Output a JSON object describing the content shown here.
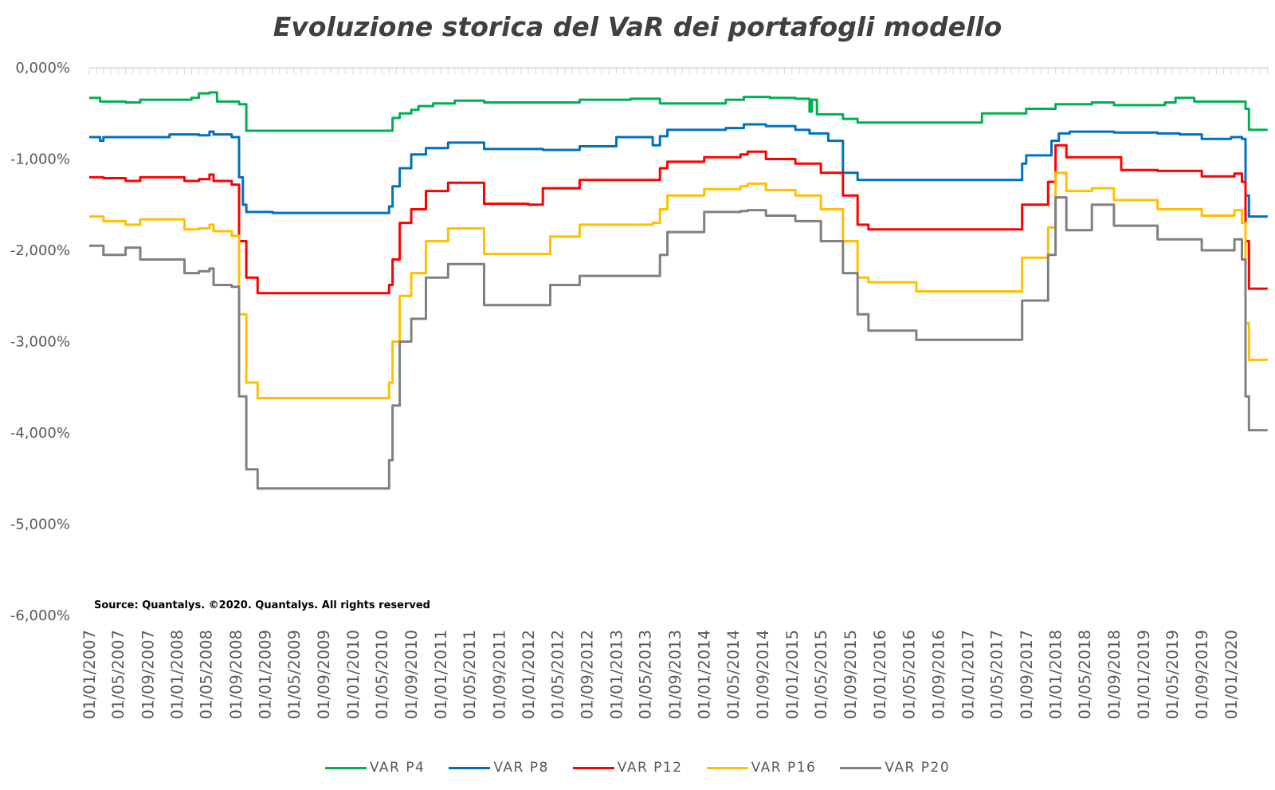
{
  "chart_data": {
    "type": "line",
    "title": "Evoluzione storica del VaR dei portafogli modello",
    "source": "Source: Quantalys. ©2020. Quantalys. All rights reserved",
    "ylim": [
      -6.0,
      0.0
    ],
    "y_ticks": [
      0,
      -1,
      -2,
      -3,
      -4,
      -5,
      -6
    ],
    "y_tick_labels": [
      "0,000%",
      "-1,000%",
      "-2,000%",
      "-3,000%",
      "-4,000%",
      "-5,000%",
      "-6,000%"
    ],
    "x_tick_labels": [
      "01/01/2007",
      "01/05/2007",
      "01/09/2007",
      "01/01/2008",
      "01/05/2008",
      "01/09/2008",
      "01/01/2009",
      "01/05/2009",
      "01/09/2009",
      "01/01/2010",
      "01/05/2010",
      "01/09/2010",
      "01/01/2011",
      "01/05/2011",
      "01/09/2011",
      "01/01/2012",
      "01/05/2012",
      "01/09/2012",
      "01/01/2013",
      "01/05/2013",
      "01/09/2013",
      "01/01/2014",
      "01/05/2014",
      "01/09/2014",
      "01/01/2015",
      "01/05/2015",
      "01/09/2015",
      "01/01/2016",
      "01/05/2016",
      "01/09/2016",
      "01/01/2017",
      "01/05/2017",
      "01/09/2017",
      "01/01/2018",
      "01/05/2018",
      "01/09/2018",
      "01/01/2019",
      "01/05/2019",
      "01/09/2019",
      "01/01/2020"
    ],
    "grid": "vertical",
    "legend_position": "bottom",
    "series": [
      {
        "name": "VAR P4",
        "color": "#00B050",
        "points": [
          [
            "2007-01-01",
            -0.33
          ],
          [
            "2007-02-15",
            -0.37
          ],
          [
            "2007-06-01",
            -0.38
          ],
          [
            "2007-08-01",
            -0.35
          ],
          [
            "2008-03-01",
            -0.33
          ],
          [
            "2008-04-01",
            -0.28
          ],
          [
            "2008-05-15",
            -0.27
          ],
          [
            "2008-06-15",
            -0.37
          ],
          [
            "2008-09-15",
            -0.4
          ],
          [
            "2008-10-15",
            -0.69
          ],
          [
            "2010-02-01",
            -0.69
          ],
          [
            "2010-06-01",
            -0.69
          ],
          [
            "2010-06-15",
            -0.55
          ],
          [
            "2010-07-15",
            -0.5
          ],
          [
            "2010-09-01",
            -0.46
          ],
          [
            "2010-10-01",
            -0.42
          ],
          [
            "2010-12-01",
            -0.39
          ],
          [
            "2011-03-01",
            -0.36
          ],
          [
            "2011-07-01",
            -0.38
          ],
          [
            "2012-03-01",
            -0.38
          ],
          [
            "2012-08-01",
            -0.35
          ],
          [
            "2013-03-01",
            -0.34
          ],
          [
            "2013-07-01",
            -0.39
          ],
          [
            "2014-04-01",
            -0.35
          ],
          [
            "2014-06-15",
            -0.32
          ],
          [
            "2014-10-01",
            -0.33
          ],
          [
            "2015-01-15",
            -0.34
          ],
          [
            "2015-03-15",
            -0.48
          ],
          [
            "2015-03-25",
            -0.35
          ],
          [
            "2015-04-15",
            -0.51
          ],
          [
            "2015-08-01",
            -0.56
          ],
          [
            "2015-10-01",
            -0.6
          ],
          [
            "2017-01-01",
            -0.6
          ],
          [
            "2017-03-01",
            -0.5
          ],
          [
            "2017-09-01",
            -0.45
          ],
          [
            "2018-01-01",
            -0.4
          ],
          [
            "2018-06-01",
            -0.38
          ],
          [
            "2018-09-01",
            -0.41
          ],
          [
            "2019-04-01",
            -0.38
          ],
          [
            "2019-05-15",
            -0.33
          ],
          [
            "2019-08-01",
            -0.37
          ],
          [
            "2020-02-15",
            -0.37
          ],
          [
            "2020-03-01",
            -0.45
          ],
          [
            "2020-03-15",
            -0.68
          ],
          [
            "2020-06-01",
            -0.68
          ]
        ]
      },
      {
        "name": "VAR P8",
        "color": "#0070C0",
        "points": [
          [
            "2007-01-01",
            -0.76
          ],
          [
            "2007-02-15",
            -0.8
          ],
          [
            "2007-03-01",
            -0.76
          ],
          [
            "2007-12-01",
            -0.73
          ],
          [
            "2008-04-01",
            -0.74
          ],
          [
            "2008-05-15",
            -0.7
          ],
          [
            "2008-06-01",
            -0.73
          ],
          [
            "2008-08-15",
            -0.76
          ],
          [
            "2008-09-15",
            -1.2
          ],
          [
            "2008-10-01",
            -1.5
          ],
          [
            "2008-10-15",
            -1.58
          ],
          [
            "2009-02-01",
            -1.59
          ],
          [
            "2010-05-15",
            -1.59
          ],
          [
            "2010-06-01",
            -1.52
          ],
          [
            "2010-06-15",
            -1.3
          ],
          [
            "2010-07-15",
            -1.1
          ],
          [
            "2010-09-01",
            -0.95
          ],
          [
            "2010-11-01",
            -0.88
          ],
          [
            "2011-02-01",
            -0.82
          ],
          [
            "2011-07-01",
            -0.89
          ],
          [
            "2012-03-01",
            -0.9
          ],
          [
            "2012-08-01",
            -0.86
          ],
          [
            "2013-01-01",
            -0.76
          ],
          [
            "2013-06-01",
            -0.85
          ],
          [
            "2013-07-01",
            -0.75
          ],
          [
            "2013-08-01",
            -0.68
          ],
          [
            "2014-04-01",
            -0.66
          ],
          [
            "2014-06-15",
            -0.62
          ],
          [
            "2014-09-15",
            -0.64
          ],
          [
            "2015-01-15",
            -0.68
          ],
          [
            "2015-03-15",
            -0.72
          ],
          [
            "2015-06-01",
            -0.8
          ],
          [
            "2015-08-01",
            -1.15
          ],
          [
            "2015-10-01",
            -1.23
          ],
          [
            "2017-07-01",
            -1.23
          ],
          [
            "2017-08-15",
            -1.05
          ],
          [
            "2017-09-01",
            -0.96
          ],
          [
            "2017-12-15",
            -0.8
          ],
          [
            "2018-01-15",
            -0.72
          ],
          [
            "2018-03-01",
            -0.7
          ],
          [
            "2018-09-01",
            -0.71
          ],
          [
            "2019-03-01",
            -0.72
          ],
          [
            "2019-06-01",
            -0.73
          ],
          [
            "2019-09-01",
            -0.78
          ],
          [
            "2020-01-01",
            -0.76
          ],
          [
            "2020-02-15",
            -0.78
          ],
          [
            "2020-03-01",
            -1.4
          ],
          [
            "2020-03-15",
            -1.63
          ],
          [
            "2020-06-01",
            -1.63
          ]
        ]
      },
      {
        "name": "VAR P12",
        "color": "#FF0000",
        "points": [
          [
            "2007-01-01",
            -1.2
          ],
          [
            "2007-03-01",
            -1.21
          ],
          [
            "2007-06-01",
            -1.24
          ],
          [
            "2007-08-01",
            -1.2
          ],
          [
            "2008-02-01",
            -1.24
          ],
          [
            "2008-04-01",
            -1.22
          ],
          [
            "2008-05-15",
            -1.17
          ],
          [
            "2008-06-01",
            -1.24
          ],
          [
            "2008-08-15",
            -1.28
          ],
          [
            "2008-09-15",
            -1.9
          ],
          [
            "2008-10-15",
            -2.3
          ],
          [
            "2008-12-01",
            -2.47
          ],
          [
            "2010-05-15",
            -2.47
          ],
          [
            "2010-06-01",
            -2.38
          ],
          [
            "2010-06-15",
            -2.1
          ],
          [
            "2010-07-15",
            -1.7
          ],
          [
            "2010-09-01",
            -1.55
          ],
          [
            "2010-11-01",
            -1.35
          ],
          [
            "2011-02-01",
            -1.26
          ],
          [
            "2011-07-01",
            -1.49
          ],
          [
            "2012-01-01",
            -1.5
          ],
          [
            "2012-03-01",
            -1.32
          ],
          [
            "2012-08-01",
            -1.23
          ],
          [
            "2013-06-01",
            -1.23
          ],
          [
            "2013-07-01",
            -1.1
          ],
          [
            "2013-08-01",
            -1.03
          ],
          [
            "2014-01-01",
            -0.98
          ],
          [
            "2014-06-01",
            -0.95
          ],
          [
            "2014-07-01",
            -0.92
          ],
          [
            "2014-09-15",
            -1.0
          ],
          [
            "2015-01-15",
            -1.05
          ],
          [
            "2015-05-01",
            -1.15
          ],
          [
            "2015-08-01",
            -1.4
          ],
          [
            "2015-10-01",
            -1.72
          ],
          [
            "2015-11-15",
            -1.77
          ],
          [
            "2017-07-01",
            -1.77
          ],
          [
            "2017-08-15",
            -1.5
          ],
          [
            "2017-12-01",
            -1.25
          ],
          [
            "2018-01-01",
            -0.85
          ],
          [
            "2018-02-15",
            -0.98
          ],
          [
            "2018-09-01",
            -0.98
          ],
          [
            "2018-10-01",
            -1.12
          ],
          [
            "2019-03-01",
            -1.13
          ],
          [
            "2019-09-01",
            -1.19
          ],
          [
            "2020-01-15",
            -1.16
          ],
          [
            "2020-02-15",
            -1.25
          ],
          [
            "2020-03-01",
            -1.9
          ],
          [
            "2020-03-15",
            -2.42
          ],
          [
            "2020-06-01",
            -2.42
          ]
        ]
      },
      {
        "name": "VAR P16",
        "color": "#FFC000",
        "points": [
          [
            "2007-01-01",
            -1.63
          ],
          [
            "2007-03-01",
            -1.68
          ],
          [
            "2007-06-01",
            -1.72
          ],
          [
            "2007-08-01",
            -1.66
          ],
          [
            "2008-02-01",
            -1.77
          ],
          [
            "2008-04-01",
            -1.76
          ],
          [
            "2008-05-15",
            -1.72
          ],
          [
            "2008-06-01",
            -1.79
          ],
          [
            "2008-08-15",
            -1.84
          ],
          [
            "2008-09-15",
            -2.7
          ],
          [
            "2008-10-15",
            -3.45
          ],
          [
            "2008-12-01",
            -3.62
          ],
          [
            "2010-05-15",
            -3.62
          ],
          [
            "2010-06-01",
            -3.45
          ],
          [
            "2010-06-15",
            -3.0
          ],
          [
            "2010-07-15",
            -2.5
          ],
          [
            "2010-09-01",
            -2.25
          ],
          [
            "2010-11-01",
            -1.9
          ],
          [
            "2011-02-01",
            -1.76
          ],
          [
            "2011-07-01",
            -2.04
          ],
          [
            "2012-03-01",
            -2.04
          ],
          [
            "2012-04-01",
            -1.85
          ],
          [
            "2012-08-01",
            -1.72
          ],
          [
            "2013-06-01",
            -1.7
          ],
          [
            "2013-07-01",
            -1.55
          ],
          [
            "2013-08-01",
            -1.4
          ],
          [
            "2014-01-01",
            -1.33
          ],
          [
            "2014-06-01",
            -1.3
          ],
          [
            "2014-07-01",
            -1.27
          ],
          [
            "2014-09-15",
            -1.34
          ],
          [
            "2015-01-15",
            -1.4
          ],
          [
            "2015-05-01",
            -1.55
          ],
          [
            "2015-08-01",
            -1.9
          ],
          [
            "2015-10-01",
            -2.3
          ],
          [
            "2015-11-15",
            -2.35
          ],
          [
            "2016-06-01",
            -2.45
          ],
          [
            "2017-07-01",
            -2.45
          ],
          [
            "2017-08-15",
            -2.08
          ],
          [
            "2017-12-01",
            -1.75
          ],
          [
            "2018-01-01",
            -1.15
          ],
          [
            "2018-02-15",
            -1.35
          ],
          [
            "2018-06-01",
            -1.32
          ],
          [
            "2018-09-01",
            -1.45
          ],
          [
            "2019-03-01",
            -1.55
          ],
          [
            "2019-09-01",
            -1.62
          ],
          [
            "2020-01-15",
            -1.56
          ],
          [
            "2020-02-15",
            -1.7
          ],
          [
            "2020-03-01",
            -2.8
          ],
          [
            "2020-03-15",
            -3.2
          ],
          [
            "2020-06-01",
            -3.2
          ]
        ]
      },
      {
        "name": "VAR P20",
        "color": "#808080",
        "points": [
          [
            "2007-01-01",
            -1.95
          ],
          [
            "2007-03-01",
            -2.05
          ],
          [
            "2007-06-01",
            -1.97
          ],
          [
            "2007-08-01",
            -2.1
          ],
          [
            "2008-02-01",
            -2.25
          ],
          [
            "2008-04-01",
            -2.23
          ],
          [
            "2008-05-15",
            -2.2
          ],
          [
            "2008-06-01",
            -2.38
          ],
          [
            "2008-08-15",
            -2.4
          ],
          [
            "2008-09-15",
            -3.6
          ],
          [
            "2008-10-15",
            -4.4
          ],
          [
            "2008-12-01",
            -4.61
          ],
          [
            "2010-05-15",
            -4.61
          ],
          [
            "2010-06-01",
            -4.3
          ],
          [
            "2010-06-15",
            -3.7
          ],
          [
            "2010-07-15",
            -3.0
          ],
          [
            "2010-09-01",
            -2.75
          ],
          [
            "2010-11-01",
            -2.3
          ],
          [
            "2011-02-01",
            -2.15
          ],
          [
            "2011-07-01",
            -2.6
          ],
          [
            "2012-03-01",
            -2.6
          ],
          [
            "2012-04-01",
            -2.38
          ],
          [
            "2012-08-01",
            -2.28
          ],
          [
            "2013-06-01",
            -2.28
          ],
          [
            "2013-07-01",
            -2.05
          ],
          [
            "2013-08-01",
            -1.8
          ],
          [
            "2014-01-01",
            -1.58
          ],
          [
            "2014-06-01",
            -1.57
          ],
          [
            "2014-07-01",
            -1.56
          ],
          [
            "2014-09-15",
            -1.62
          ],
          [
            "2015-01-15",
            -1.68
          ],
          [
            "2015-05-01",
            -1.9
          ],
          [
            "2015-08-01",
            -2.25
          ],
          [
            "2015-10-01",
            -2.7
          ],
          [
            "2015-11-15",
            -2.88
          ],
          [
            "2016-06-01",
            -2.98
          ],
          [
            "2017-07-01",
            -2.98
          ],
          [
            "2017-08-15",
            -2.55
          ],
          [
            "2017-12-01",
            -2.05
          ],
          [
            "2018-01-01",
            -1.42
          ],
          [
            "2018-02-15",
            -1.78
          ],
          [
            "2018-06-01",
            -1.5
          ],
          [
            "2018-09-01",
            -1.73
          ],
          [
            "2019-03-01",
            -1.88
          ],
          [
            "2019-09-01",
            -2.0
          ],
          [
            "2020-01-15",
            -1.88
          ],
          [
            "2020-02-15",
            -2.1
          ],
          [
            "2020-03-01",
            -3.6
          ],
          [
            "2020-03-15",
            -3.97
          ],
          [
            "2020-06-01",
            -3.97
          ]
        ]
      }
    ]
  }
}
